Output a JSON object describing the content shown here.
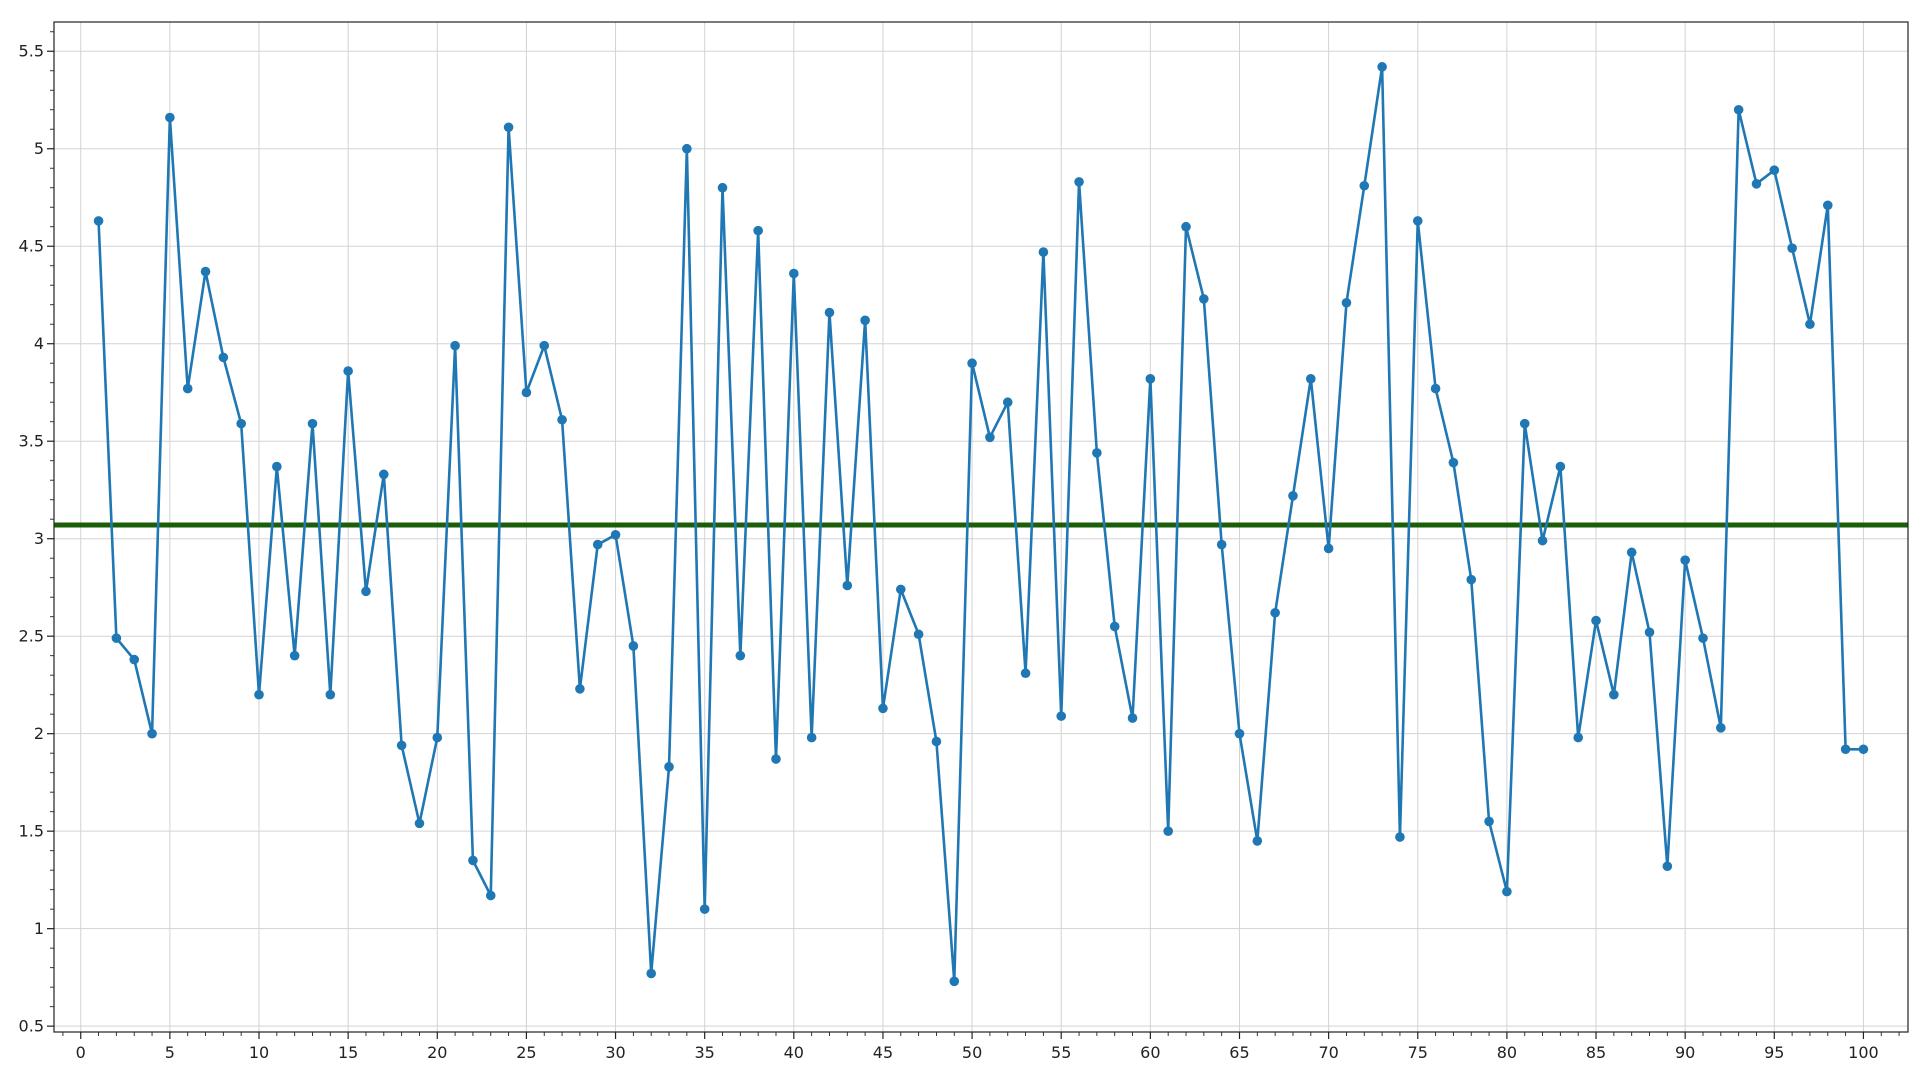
{
  "chart_data": {
    "type": "line",
    "title": "",
    "xlabel": "",
    "ylabel": "",
    "xlim": [
      -1.5,
      102.5
    ],
    "ylim": [
      0.47,
      5.65
    ],
    "grid": true,
    "x_ticks": [
      0,
      5,
      10,
      15,
      20,
      25,
      30,
      35,
      40,
      45,
      50,
      55,
      60,
      65,
      70,
      75,
      80,
      85,
      90,
      95,
      100
    ],
    "x_tick_labels": [
      "0",
      "5",
      "10",
      "15",
      "20",
      "25",
      "30",
      "35",
      "40",
      "45",
      "50",
      "55",
      "60",
      "65",
      "70",
      "75",
      "80",
      "85",
      "90",
      "95",
      "100"
    ],
    "y_ticks": [
      0.5,
      1,
      1.5,
      2,
      2.5,
      3,
      3.5,
      4,
      4.5,
      5,
      5.5
    ],
    "y_tick_labels": [
      "0.5",
      "1",
      "1.5",
      "2",
      "2.5",
      "3",
      "3.5",
      "4",
      "4.5",
      "5",
      "5.5"
    ],
    "series": [
      {
        "color": "#1f77b4",
        "x": [
          1,
          2,
          3,
          4,
          5,
          6,
          7,
          8,
          9,
          10,
          11,
          12,
          13,
          14,
          15,
          16,
          17,
          18,
          19,
          20,
          21,
          22,
          23,
          24,
          25,
          26,
          27,
          28,
          29,
          30,
          31,
          32,
          33,
          34,
          35,
          36,
          37,
          38,
          39,
          40,
          41,
          42,
          43,
          44,
          45,
          46,
          47,
          48,
          49,
          50,
          51,
          52,
          53,
          54,
          55,
          56,
          57,
          58,
          59,
          60,
          61,
          62,
          63,
          64,
          65,
          66,
          67,
          68,
          69,
          70,
          71,
          72,
          73,
          74,
          75,
          76,
          77,
          78,
          79,
          80,
          81,
          82,
          83,
          84,
          85,
          86,
          87,
          88,
          89,
          90,
          91,
          92,
          93,
          94,
          95,
          96,
          97,
          98,
          99,
          100
        ],
        "values": [
          4.63,
          2.49,
          2.38,
          2.0,
          5.16,
          3.77,
          4.37,
          3.93,
          3.59,
          2.2,
          3.37,
          2.4,
          3.59,
          2.2,
          3.86,
          2.73,
          3.33,
          1.94,
          1.54,
          1.98,
          3.99,
          1.35,
          1.17,
          5.11,
          3.75,
          3.99,
          3.61,
          2.23,
          2.97,
          3.02,
          2.45,
          0.77,
          1.83,
          5.0,
          1.1,
          4.8,
          2.4,
          4.58,
          1.87,
          4.36,
          1.98,
          4.16,
          2.76,
          4.12,
          2.13,
          2.74,
          2.51,
          1.96,
          0.73,
          3.9,
          3.52,
          3.7,
          2.31,
          4.47,
          2.09,
          4.83,
          3.44,
          2.55,
          2.08,
          3.82,
          1.5,
          4.6,
          4.23,
          2.97,
          2.0,
          1.45,
          2.62,
          3.22,
          3.82,
          2.95,
          4.21,
          4.81,
          5.42,
          1.47,
          4.63,
          3.77,
          3.39,
          2.79,
          1.55,
          1.19,
          3.59,
          2.99,
          3.37,
          1.98,
          2.58,
          2.2,
          2.93,
          2.52,
          1.32,
          2.89,
          2.49,
          2.03,
          5.2,
          4.82,
          4.89,
          4.49,
          4.1,
          4.71,
          1.92,
          1.92
        ]
      }
    ],
    "reference_lines": [
      {
        "orientation": "horizontal",
        "value": 3.07,
        "color": "#1a5e0a"
      }
    ]
  }
}
